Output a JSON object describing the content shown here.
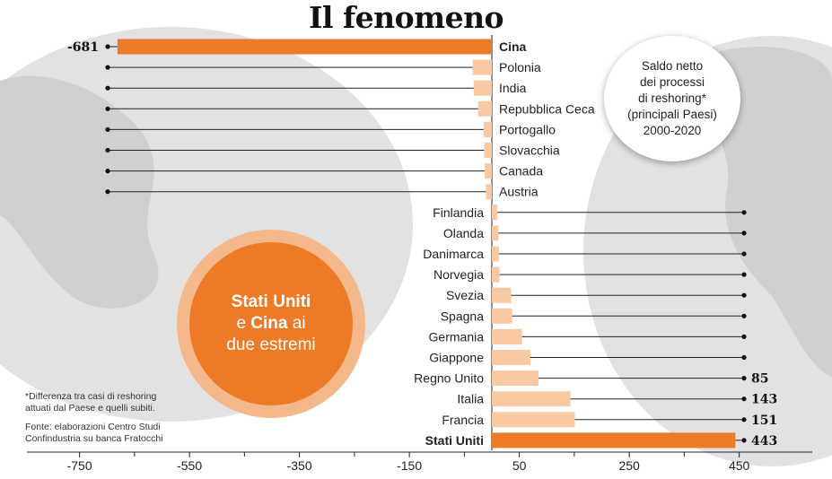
{
  "title": "Il fenomeno",
  "legend": {
    "line1": "Saldo netto",
    "line2": "dei processi",
    "line3": "di reshoring*",
    "line4": "(principali Paesi)",
    "line5": "2000-2020"
  },
  "badge": {
    "bold1": "Stati Uniti",
    "mid1": "e ",
    "bold2": "Cina",
    "mid2": " ai",
    "line3": "due estremi"
  },
  "notes": {
    "asterisk_line1": "*Differenza tra casi di reshoring",
    "asterisk_line2": "attuati dal Paese e quelli subiti.",
    "source_line1": "Fonte: elaborazioni Centro Studi",
    "source_line2": "Confindustria su banca Fratocchi"
  },
  "colors": {
    "accent": "#ec7a26",
    "bar_light": "#f8c9a3",
    "map_gray": "#dedede"
  },
  "chart_data": {
    "type": "bar",
    "orientation": "horizontal",
    "title": "Il fenomeno",
    "categories": [
      "Cina",
      "Polonia",
      "India",
      "Repubblica Ceca",
      "Portogallo",
      "Slovacchia",
      "Canada",
      "Austria",
      "Finlandia",
      "Olanda",
      "Danimarca",
      "Norvegia",
      "Svezia",
      "Spagna",
      "Germania",
      "Giappone",
      "Regno Unito",
      "Italia",
      "Francia",
      "Stati Uniti"
    ],
    "values": [
      -681,
      -35,
      -33,
      -25,
      -15,
      -14,
      -13,
      -11,
      10,
      12,
      13,
      14,
      35,
      37,
      55,
      70,
      85,
      143,
      151,
      443
    ],
    "highlight": [
      "Cina",
      "Stati Uniti"
    ],
    "value_labels": {
      "Cina": "-681",
      "Regno Unito": "85",
      "Italia": "143",
      "Francia": "151",
      "Stati Uniti": "443"
    },
    "xticks": [
      -750,
      -550,
      -350,
      -150,
      50,
      250,
      450
    ],
    "xlim": [
      -830,
      515
    ],
    "grid": false
  }
}
